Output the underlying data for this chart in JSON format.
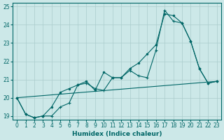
{
  "xlabel": "Humidex (Indice chaleur)",
  "bg_color": "#cce8e8",
  "grid_color": "#aacccc",
  "line_color": "#006666",
  "xlim": [
    -0.5,
    23.5
  ],
  "ylim": [
    18.8,
    25.2
  ],
  "yticks": [
    19,
    20,
    21,
    22,
    23,
    24,
    25
  ],
  "xticks": [
    0,
    1,
    2,
    3,
    4,
    5,
    6,
    7,
    8,
    9,
    10,
    11,
    12,
    13,
    14,
    15,
    16,
    17,
    18,
    19,
    20,
    21,
    22,
    23
  ],
  "curve1_x": [
    0,
    1,
    2,
    3,
    4,
    5,
    6,
    7,
    8,
    9,
    10,
    11,
    12,
    13,
    14,
    15,
    16,
    17,
    18,
    19,
    20,
    21,
    22,
    23
  ],
  "curve1_y": [
    20.0,
    19.1,
    18.9,
    19.0,
    19.0,
    19.5,
    19.7,
    20.7,
    20.8,
    20.5,
    20.4,
    21.1,
    21.1,
    21.5,
    21.2,
    21.1,
    22.6,
    24.8,
    24.2,
    24.1,
    23.1,
    21.6,
    20.8,
    20.9
  ],
  "curve2_x": [
    0,
    1,
    2,
    3,
    4,
    5,
    6,
    7,
    8,
    9,
    10,
    11,
    12,
    13,
    14,
    15,
    16,
    17,
    18,
    19,
    20,
    21,
    22,
    23
  ],
  "curve2_y": [
    20.0,
    19.1,
    18.9,
    19.0,
    19.5,
    20.3,
    20.5,
    20.7,
    20.9,
    20.4,
    21.4,
    21.1,
    21.1,
    21.6,
    21.9,
    22.4,
    22.9,
    24.6,
    24.5,
    24.1,
    23.1,
    21.6,
    20.8,
    20.9
  ],
  "curve3_x": [
    0,
    23
  ],
  "curve3_y": [
    20.0,
    20.9
  ]
}
